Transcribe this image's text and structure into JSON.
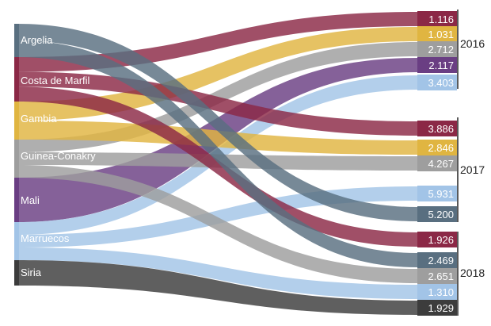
{
  "chart_data": {
    "type": "sankey",
    "sources": [
      {
        "name": "Argelia",
        "color": "#596f80"
      },
      {
        "name": "Costa de Marfil",
        "color": "#8b2846"
      },
      {
        "name": "Gambia",
        "color": "#e0b541"
      },
      {
        "name": "Guinea-Conakry",
        "color": "#9e9e9e"
      },
      {
        "name": "Mali",
        "color": "#6a3e83"
      },
      {
        "name": "Marruecos",
        "color": "#a2c4e7"
      },
      {
        "name": "Siria",
        "color": "#3c3c3c"
      }
    ],
    "groups": [
      {
        "year": "2016",
        "flows": [
          {
            "source": "Costa de Marfil",
            "label": "1.116",
            "value": 1116
          },
          {
            "source": "Gambia",
            "label": "1.031",
            "value": 1031
          },
          {
            "source": "Guinea-Conakry",
            "label": "2.712",
            "value": 2712
          },
          {
            "source": "Mali",
            "label": "2.117",
            "value": 2117
          },
          {
            "source": "Marruecos",
            "label": "3.403",
            "value": 3403
          }
        ]
      },
      {
        "year": "2017",
        "flows": [
          {
            "source": "Costa de Marfil",
            "label": "3.886",
            "value": 3886
          },
          {
            "source": "Gambia",
            "label": "2.846",
            "value": 2846
          },
          {
            "source": "Guinea-Conakry",
            "label": "4.267",
            "value": 4267
          },
          {
            "source": "Marruecos",
            "label": "5.931",
            "value": 5931
          },
          {
            "source": "Argelia",
            "label": "5.200",
            "value": 5200
          }
        ]
      },
      {
        "year": "2018",
        "flows": [
          {
            "source": "Costa de Marfil",
            "label": "1.926",
            "value": 1926
          },
          {
            "source": "Argelia",
            "label": "2.469",
            "value": 2469
          },
          {
            "source": "Guinea-Conakry",
            "label": "2.651",
            "value": 2651
          },
          {
            "source": "Marruecos",
            "label": "1.310",
            "value": 1310
          },
          {
            "source": "Siria",
            "label": "1.929",
            "value": 1929
          }
        ]
      }
    ]
  }
}
